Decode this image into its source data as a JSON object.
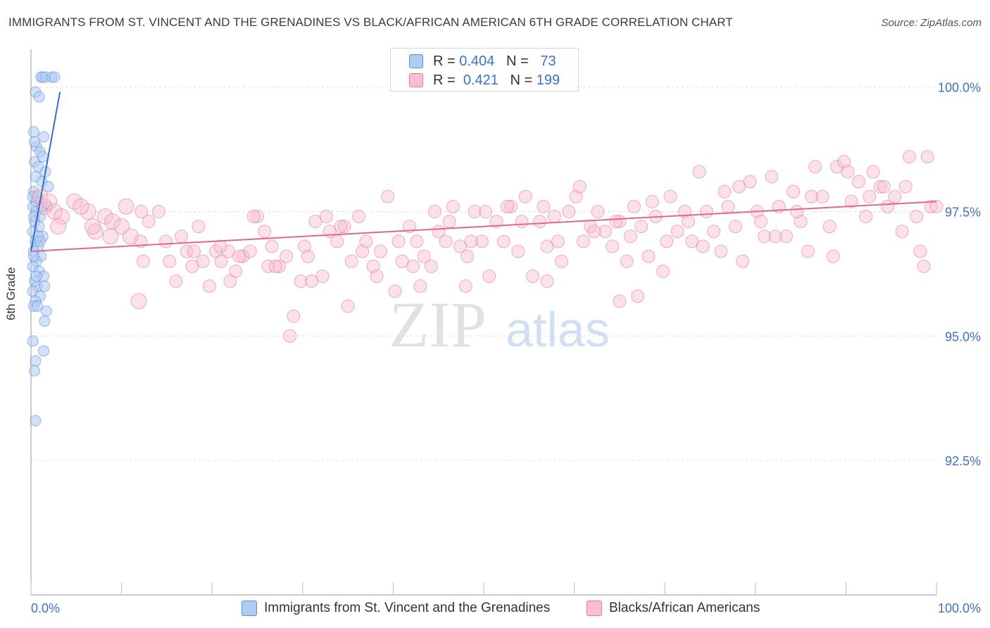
{
  "header": {
    "title": "IMMIGRANTS FROM ST. VINCENT AND THE GRENADINES VS BLACK/AFRICAN AMERICAN 6TH GRADE CORRELATION CHART",
    "source": "Source: ZipAtlas.com"
  },
  "watermark": {
    "zip": "ZIP",
    "atlas": "atlas"
  },
  "stats_legend": {
    "rows": [
      {
        "r_label": "R =",
        "r_value": "0.404",
        "n_label": "N =",
        "n_value": "73",
        "color": "#9dbff0"
      },
      {
        "r_label": "R =",
        "r_value": "0.421",
        "n_label": "N =",
        "n_value": "199",
        "color": "#f4a9c0"
      }
    ]
  },
  "chart_data": {
    "type": "scatter",
    "title": "IMMIGRANTS FROM ST. VINCENT AND THE GRENADINES VS BLACK/AFRICAN AMERICAN 6TH GRADE CORRELATION CHART",
    "xlabel": "",
    "ylabel": "6th Grade",
    "xlim": [
      0,
      100
    ],
    "ylim": [
      89.8,
      100.9
    ],
    "x_ticks": [
      "0.0%",
      "100.0%"
    ],
    "y_ticks": [
      {
        "value": 100.0,
        "label": "100.0%"
      },
      {
        "value": 97.5,
        "label": "97.5%"
      },
      {
        "value": 95.0,
        "label": "95.0%"
      },
      {
        "value": 92.5,
        "label": "92.5%"
      }
    ],
    "grid": "horizontal-dashed",
    "legend_position": "bottom",
    "series": [
      {
        "name": "Immigrants from St. Vincent and the Grenadines",
        "color": "#5b8fd9",
        "fill": "#aecbf3",
        "trend": {
          "x0": 0.0,
          "y0": 96.7,
          "x1": 3.2,
          "y1": 99.9
        },
        "points": [
          [
            1.1,
            100.2
          ],
          [
            1.3,
            100.2
          ],
          [
            1.6,
            100.2
          ],
          [
            2.3,
            100.2
          ],
          [
            2.6,
            100.2
          ],
          [
            0.5,
            99.9
          ],
          [
            0.9,
            99.8
          ],
          [
            0.3,
            99.1
          ],
          [
            1.4,
            99.0
          ],
          [
            0.6,
            98.8
          ],
          [
            1.0,
            98.7
          ],
          [
            0.4,
            98.5
          ],
          [
            0.8,
            98.4
          ],
          [
            1.6,
            98.3
          ],
          [
            0.5,
            98.2
          ],
          [
            1.2,
            98.1
          ],
          [
            0.3,
            97.9
          ],
          [
            0.7,
            97.8
          ],
          [
            1.8,
            97.6
          ],
          [
            0.2,
            97.6
          ],
          [
            0.6,
            97.5
          ],
          [
            1.0,
            97.4
          ],
          [
            0.4,
            97.3
          ],
          [
            0.9,
            97.2
          ],
          [
            0.2,
            97.1
          ],
          [
            1.3,
            97.0
          ],
          [
            0.5,
            96.9
          ],
          [
            0.8,
            96.8
          ],
          [
            0.3,
            96.7
          ],
          [
            1.1,
            96.6
          ],
          [
            0.6,
            96.5
          ],
          [
            0.2,
            96.4
          ],
          [
            0.9,
            96.3
          ],
          [
            1.4,
            96.2
          ],
          [
            0.4,
            96.1
          ],
          [
            0.7,
            96.0
          ],
          [
            0.2,
            95.9
          ],
          [
            1.0,
            95.8
          ],
          [
            0.5,
            95.7
          ],
          [
            0.3,
            95.6
          ],
          [
            1.7,
            95.5
          ],
          [
            1.5,
            95.3
          ],
          [
            0.2,
            94.9
          ],
          [
            1.4,
            94.7
          ],
          [
            0.5,
            94.5
          ],
          [
            0.4,
            94.3
          ],
          [
            0.5,
            93.3
          ],
          [
            0.6,
            97.7
          ],
          [
            1.2,
            97.6
          ],
          [
            0.8,
            97.0
          ],
          [
            0.3,
            96.6
          ],
          [
            1.5,
            96.0
          ],
          [
            0.7,
            95.6
          ],
          [
            0.4,
            98.9
          ],
          [
            1.9,
            98.0
          ],
          [
            0.3,
            97.4
          ],
          [
            1.0,
            96.9
          ],
          [
            0.6,
            96.2
          ],
          [
            0.2,
            97.8
          ],
          [
            1.3,
            98.6
          ]
        ]
      },
      {
        "name": "Blacks/African Americans",
        "color": "#e8779e",
        "fill": "#f7bfd1",
        "trend": {
          "x0": 0.0,
          "y0": 96.7,
          "x1": 100.0,
          "y1": 97.7
        },
        "points": [
          [
            1.0,
            97.8
          ],
          [
            1.5,
            97.6
          ],
          [
            2.0,
            97.7
          ],
          [
            2.6,
            97.5
          ],
          [
            3.4,
            97.4
          ],
          [
            4.8,
            97.7
          ],
          [
            6.3,
            97.5
          ],
          [
            7.1,
            97.1
          ],
          [
            8.2,
            97.4
          ],
          [
            9.0,
            97.3
          ],
          [
            10.0,
            97.2
          ],
          [
            11.0,
            97.0
          ],
          [
            12.2,
            97.5
          ],
          [
            13.0,
            97.3
          ],
          [
            14.1,
            97.5
          ],
          [
            11.9,
            95.7
          ],
          [
            12.4,
            96.5
          ],
          [
            12.1,
            96.9
          ],
          [
            15.3,
            96.5
          ],
          [
            16.6,
            97.0
          ],
          [
            17.2,
            96.7
          ],
          [
            17.8,
            96.4
          ],
          [
            18.5,
            97.2
          ],
          [
            19.0,
            96.5
          ],
          [
            19.7,
            96.0
          ],
          [
            20.4,
            96.7
          ],
          [
            21.0,
            96.5
          ],
          [
            21.8,
            96.7
          ],
          [
            22.6,
            96.3
          ],
          [
            23.4,
            96.6
          ],
          [
            24.2,
            96.7
          ],
          [
            25.0,
            97.4
          ],
          [
            25.8,
            97.1
          ],
          [
            26.6,
            96.8
          ],
          [
            27.4,
            96.4
          ],
          [
            28.2,
            96.6
          ],
          [
            29.0,
            95.4
          ],
          [
            29.8,
            96.1
          ],
          [
            30.6,
            96.6
          ],
          [
            31.4,
            97.3
          ],
          [
            32.2,
            96.2
          ],
          [
            33.0,
            97.1
          ],
          [
            33.8,
            96.9
          ],
          [
            34.6,
            97.2
          ],
          [
            35.4,
            96.5
          ],
          [
            36.2,
            97.4
          ],
          [
            37.0,
            96.9
          ],
          [
            37.8,
            96.4
          ],
          [
            38.6,
            96.7
          ],
          [
            39.4,
            97.8
          ],
          [
            40.2,
            95.9
          ],
          [
            41.0,
            96.5
          ],
          [
            41.8,
            97.2
          ],
          [
            42.6,
            96.9
          ],
          [
            43.4,
            96.6
          ],
          [
            44.2,
            96.4
          ],
          [
            45.0,
            97.1
          ],
          [
            45.8,
            96.9
          ],
          [
            46.6,
            97.6
          ],
          [
            47.4,
            96.8
          ],
          [
            48.2,
            96.6
          ],
          [
            49.0,
            97.5
          ],
          [
            49.8,
            96.9
          ],
          [
            50.6,
            96.2
          ],
          [
            51.4,
            97.3
          ],
          [
            52.2,
            96.9
          ],
          [
            53.0,
            97.6
          ],
          [
            53.8,
            96.7
          ],
          [
            54.6,
            97.8
          ],
          [
            55.4,
            96.2
          ],
          [
            56.2,
            97.3
          ],
          [
            57.0,
            96.8
          ],
          [
            57.8,
            97.4
          ],
          [
            58.6,
            96.5
          ],
          [
            59.4,
            97.5
          ],
          [
            60.2,
            97.8
          ],
          [
            61.0,
            96.9
          ],
          [
            61.8,
            97.2
          ],
          [
            62.6,
            97.5
          ],
          [
            63.4,
            97.1
          ],
          [
            64.2,
            96.8
          ],
          [
            65.0,
            97.3
          ],
          [
            65.8,
            96.5
          ],
          [
            66.6,
            97.6
          ],
          [
            67.4,
            97.2
          ],
          [
            68.2,
            96.6
          ],
          [
            69.0,
            97.4
          ],
          [
            69.8,
            96.3
          ],
          [
            70.6,
            97.8
          ],
          [
            71.4,
            97.1
          ],
          [
            72.2,
            97.5
          ],
          [
            73.0,
            96.9
          ],
          [
            73.8,
            98.3
          ],
          [
            74.6,
            97.5
          ],
          [
            75.4,
            97.1
          ],
          [
            76.2,
            96.7
          ],
          [
            77.0,
            97.6
          ],
          [
            77.8,
            97.2
          ],
          [
            78.6,
            96.5
          ],
          [
            79.4,
            98.1
          ],
          [
            80.2,
            97.5
          ],
          [
            81.0,
            97.0
          ],
          [
            81.8,
            98.2
          ],
          [
            82.6,
            97.6
          ],
          [
            83.4,
            97.0
          ],
          [
            84.2,
            97.9
          ],
          [
            85.0,
            97.3
          ],
          [
            85.8,
            96.7
          ],
          [
            86.6,
            98.4
          ],
          [
            87.4,
            97.8
          ],
          [
            88.2,
            97.2
          ],
          [
            89.0,
            98.4
          ],
          [
            89.8,
            98.5
          ],
          [
            90.6,
            97.7
          ],
          [
            91.4,
            98.1
          ],
          [
            92.2,
            97.4
          ],
          [
            93.0,
            98.3
          ],
          [
            93.8,
            98.0
          ],
          [
            94.6,
            97.6
          ],
          [
            95.4,
            97.8
          ],
          [
            96.2,
            97.1
          ],
          [
            97.0,
            98.6
          ],
          [
            97.8,
            97.4
          ],
          [
            98.6,
            96.4
          ],
          [
            99.4,
            97.6
          ],
          [
            100.0,
            97.6
          ],
          [
            3.0,
            97.2
          ],
          [
            5.5,
            97.6
          ],
          [
            6.8,
            97.2
          ],
          [
            8.8,
            97.0
          ],
          [
            10.5,
            97.6
          ],
          [
            14.9,
            96.9
          ],
          [
            16.0,
            96.1
          ],
          [
            18.0,
            96.7
          ],
          [
            20.9,
            96.8
          ],
          [
            23.0,
            96.6
          ],
          [
            24.6,
            97.4
          ],
          [
            26.2,
            96.4
          ],
          [
            28.6,
            95.0
          ],
          [
            30.2,
            96.8
          ],
          [
            32.6,
            97.4
          ],
          [
            34.2,
            97.2
          ],
          [
            36.6,
            96.7
          ],
          [
            38.2,
            96.2
          ],
          [
            40.6,
            96.9
          ],
          [
            42.2,
            96.4
          ],
          [
            44.6,
            97.5
          ],
          [
            46.2,
            97.3
          ],
          [
            48.6,
            96.9
          ],
          [
            50.2,
            97.5
          ],
          [
            52.6,
            97.6
          ],
          [
            54.2,
            97.3
          ],
          [
            56.6,
            97.6
          ],
          [
            58.2,
            96.9
          ],
          [
            60.6,
            98.0
          ],
          [
            62.2,
            97.1
          ],
          [
            64.6,
            97.3
          ],
          [
            66.2,
            97.0
          ],
          [
            68.6,
            97.7
          ],
          [
            70.2,
            96.9
          ],
          [
            72.6,
            97.3
          ],
          [
            74.2,
            96.8
          ],
          [
            76.6,
            97.9
          ],
          [
            78.2,
            98.0
          ],
          [
            80.6,
            97.3
          ],
          [
            82.2,
            97.0
          ],
          [
            84.6,
            97.5
          ],
          [
            86.2,
            97.8
          ],
          [
            88.6,
            96.6
          ],
          [
            90.2,
            98.3
          ],
          [
            92.6,
            97.8
          ],
          [
            94.2,
            98.0
          ],
          [
            96.6,
            98.0
          ],
          [
            98.2,
            96.7
          ],
          [
            99.0,
            98.6
          ],
          [
            67.0,
            95.8
          ],
          [
            65.0,
            95.7
          ],
          [
            35.0,
            95.6
          ],
          [
            31.0,
            96.1
          ],
          [
            22.0,
            96.1
          ],
          [
            48.0,
            96.0
          ],
          [
            43.0,
            96.0
          ],
          [
            27.0,
            96.4
          ],
          [
            57.0,
            96.1
          ]
        ]
      }
    ]
  },
  "bottom_legend": [
    {
      "label": "Immigrants from St. Vincent and the Grenadines",
      "color": "#aecbf3",
      "border": "#5b8fd9"
    },
    {
      "label": "Blacks/African Americans",
      "color": "#f7bfd1",
      "border": "#e8779e"
    }
  ]
}
